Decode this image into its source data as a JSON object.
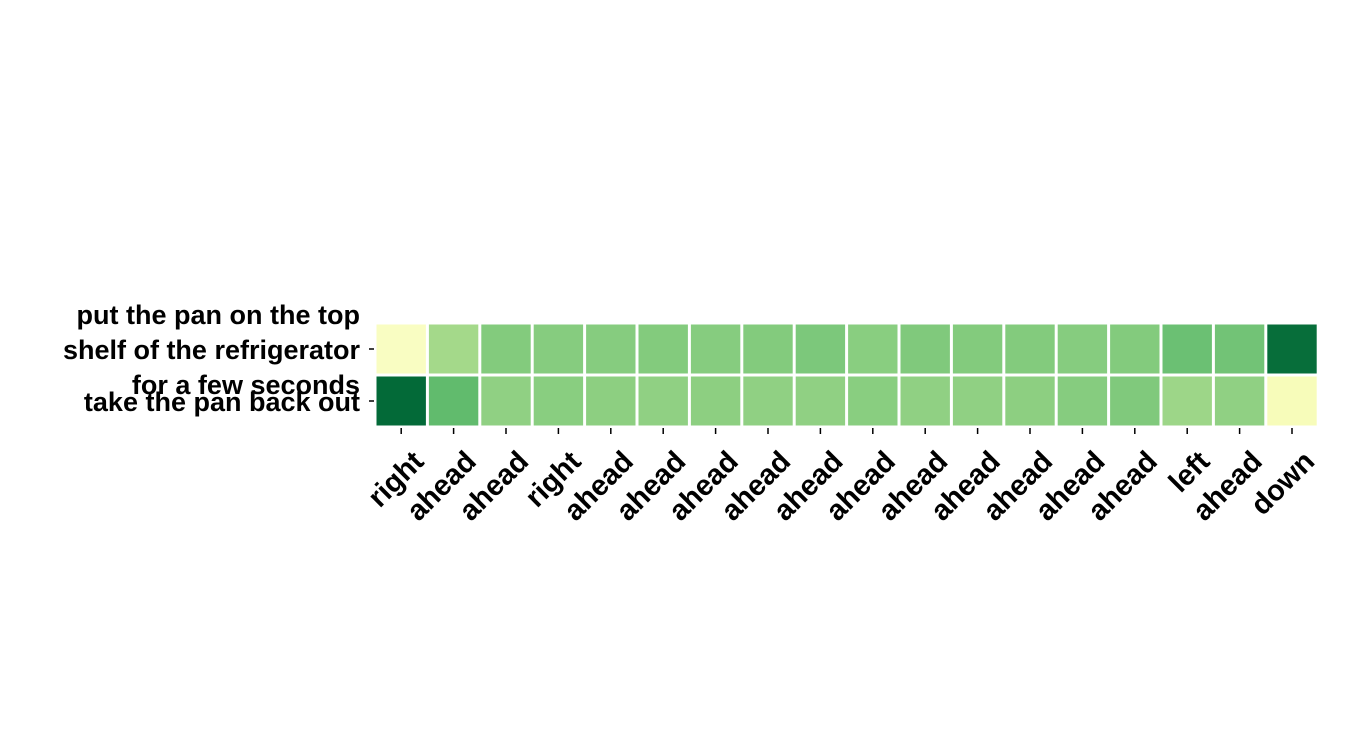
{
  "chart_data": {
    "type": "heatmap",
    "title": "",
    "xlabel": "",
    "ylabel": "",
    "x_categories": [
      "right",
      "ahead",
      "ahead",
      "right",
      "ahead",
      "ahead",
      "ahead",
      "ahead",
      "ahead",
      "ahead",
      "ahead",
      "ahead",
      "ahead",
      "ahead",
      "ahead",
      "left",
      "ahead",
      "down"
    ],
    "y_categories": [
      [
        "put the pan on the top",
        "shelf of the refrigerator",
        "for a few seconds"
      ],
      [
        "take the pan back out"
      ]
    ],
    "values": [
      [
        0.0,
        0.38,
        0.48,
        0.47,
        0.47,
        0.48,
        0.47,
        0.48,
        0.5,
        0.46,
        0.49,
        0.48,
        0.48,
        0.47,
        0.48,
        0.55,
        0.53,
        0.96
      ],
      [
        0.98,
        0.58,
        0.44,
        0.46,
        0.45,
        0.44,
        0.45,
        0.44,
        0.44,
        0.46,
        0.44,
        0.44,
        0.45,
        0.47,
        0.49,
        0.4,
        0.44,
        0.03
      ]
    ],
    "colormap": "YlGn",
    "grid": false,
    "legend": "none"
  }
}
